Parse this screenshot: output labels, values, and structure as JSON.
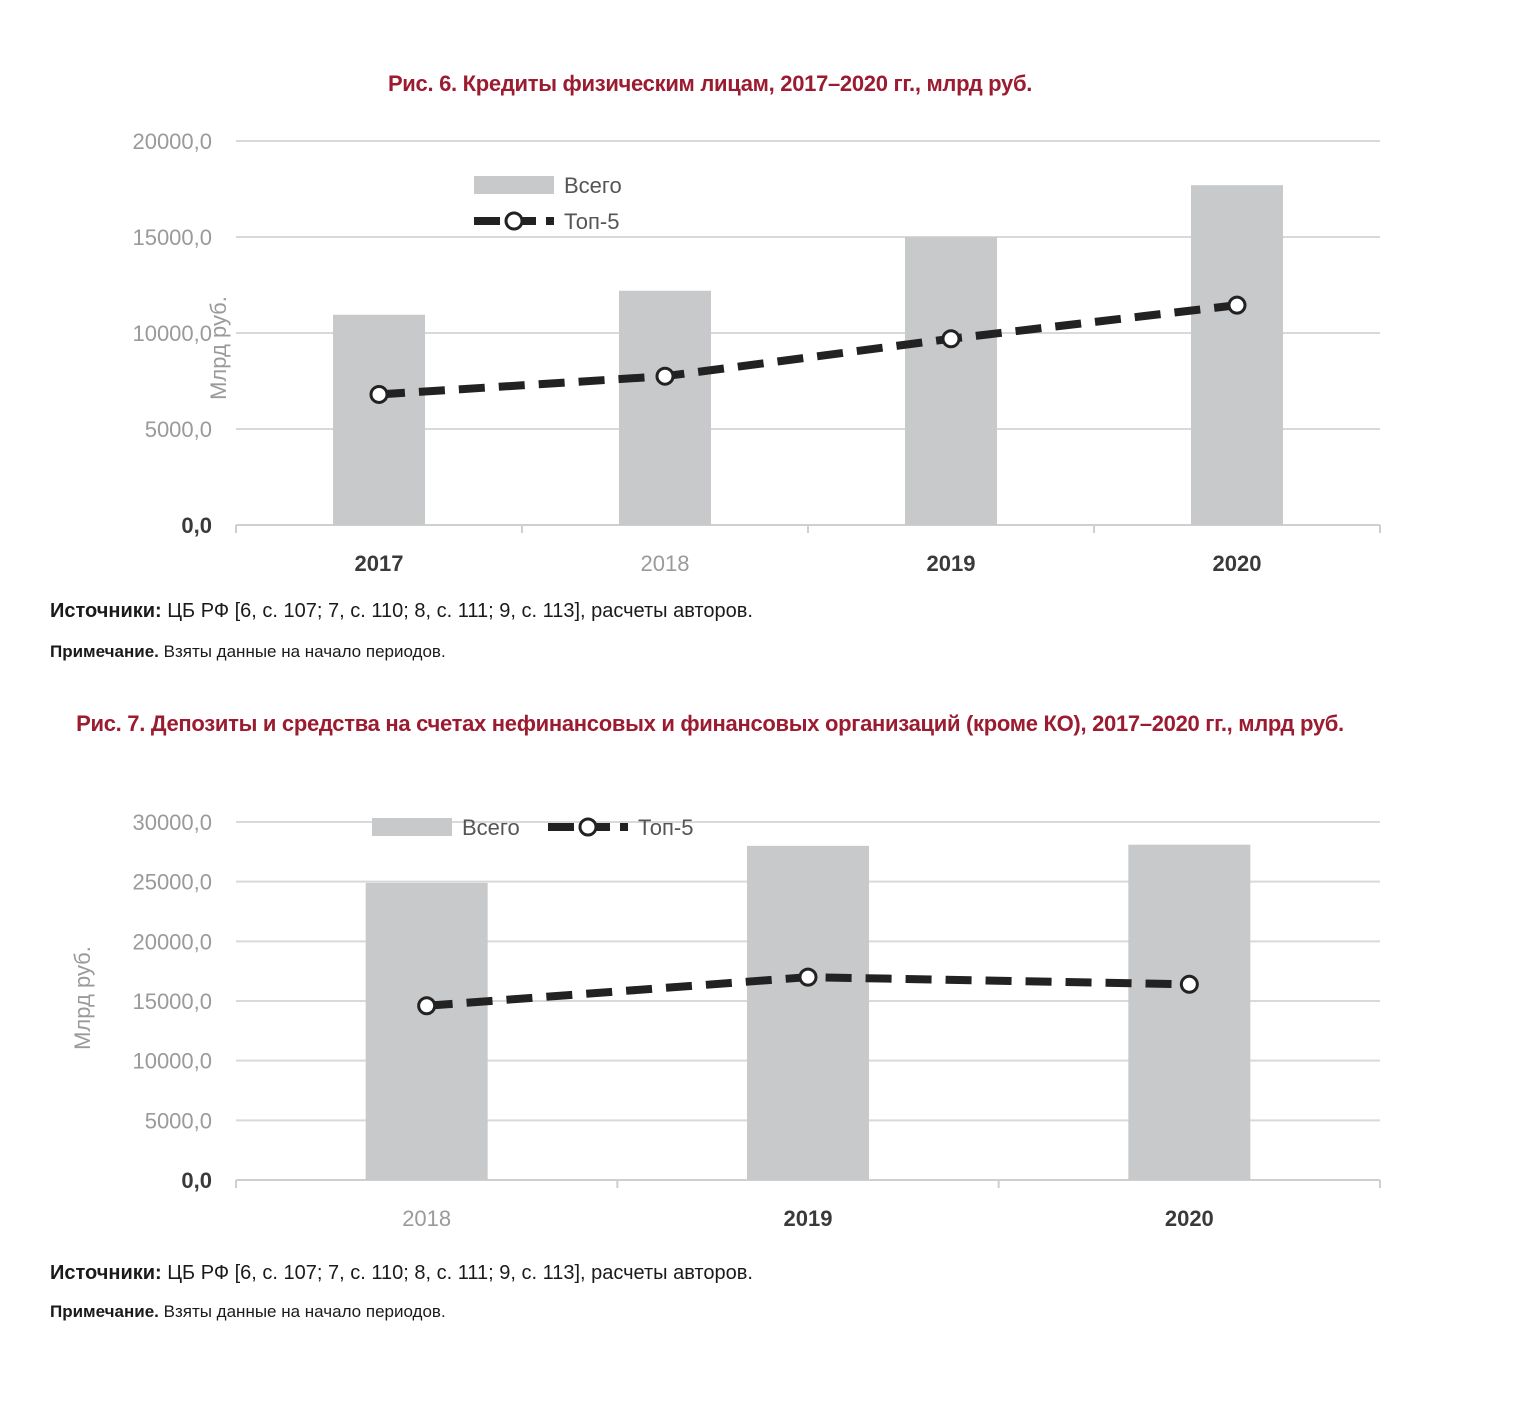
{
  "figure1": {
    "title": "Рис. 6. Кредиты физическим лицам, 2017–2020 гг., млрд руб.",
    "source_label": "Источники:",
    "source_text": " ЦБ РФ [6, с. 107; 7, с. 110; 8, с. 111; 9, с. 113], расчеты авторов.",
    "note_label": "Примечание.",
    "note_text": " Взяты данные на начало периодов."
  },
  "figure2": {
    "title": "Рис. 7. Депозиты и средства на счетах нефинансовых и финансовых организаций (кроме КО), 2017–2020 гг., млрд руб.",
    "source_label": "Источники:",
    "source_text": " ЦБ РФ [6, с. 107; 7, с. 110; 8, с. 111; 9, с. 113], расчеты авторов.",
    "note_label": "Примечание.",
    "note_text": " Взяты данные на начало периодов."
  },
  "chart_data": [
    {
      "type": "bar",
      "categories": [
        "2017",
        "2018",
        "2019",
        "2020"
      ],
      "category_bold": [
        true,
        false,
        true,
        true
      ],
      "series": [
        {
          "name": "Всего",
          "type": "bar",
          "values": [
            10950,
            12200,
            15000,
            17700
          ]
        },
        {
          "name": "Топ-5",
          "type": "line",
          "values": [
            6800,
            7750,
            9700,
            11450
          ]
        }
      ],
      "ylabel": "Млрд руб.",
      "ylim": [
        0,
        20000
      ],
      "yticks": [
        "0,0",
        "5000,0",
        "10000,0",
        "15000,0",
        "20000,0"
      ],
      "legend_position": "top-left, stacked",
      "grid": true,
      "colors": {
        "bar": "#c8c9cb",
        "line": "#222222",
        "marker_fill": "#ffffff",
        "grid": "#d9d9d9"
      }
    },
    {
      "type": "bar",
      "categories": [
        "2018",
        "2019",
        "2020"
      ],
      "category_bold": [
        false,
        true,
        true
      ],
      "series": [
        {
          "name": "Всего",
          "type": "bar",
          "values": [
            24900,
            28000,
            28100
          ]
        },
        {
          "name": "Топ-5",
          "type": "line",
          "values": [
            14600,
            17000,
            16400
          ]
        }
      ],
      "ylabel": "Млрд руб.",
      "ylim": [
        0,
        30000
      ],
      "yticks": [
        "0,0",
        "5000,0",
        "10000,0",
        "15000,0",
        "20000,0",
        "25000,0",
        "30000,0"
      ],
      "legend_position": "top, horizontal",
      "grid": true,
      "colors": {
        "bar": "#c8c9cb",
        "line": "#222222",
        "marker_fill": "#ffffff",
        "grid": "#d9d9d9"
      }
    }
  ]
}
